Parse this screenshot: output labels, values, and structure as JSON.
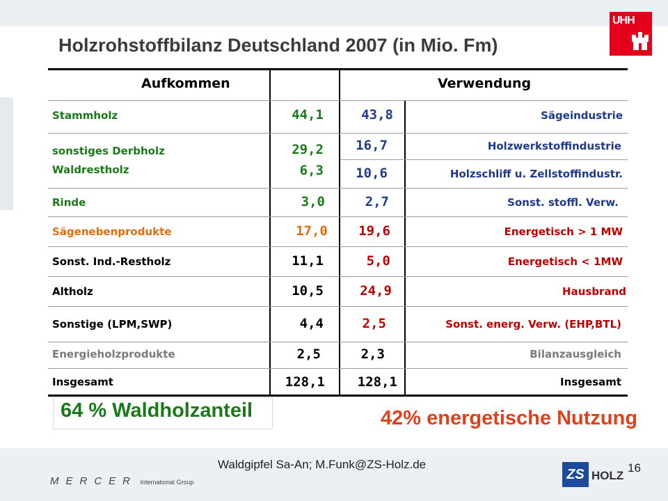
{
  "title": "Holzrohstoffbilanz Deutschland 2007 (in Mio. Fm)",
  "logo": {
    "text": "UHH"
  },
  "table": {
    "header": {
      "left": "Aufkommen",
      "right": "Verwendung"
    },
    "rows": [
      {
        "src": "Stammholz",
        "src_val": "44,1",
        "use_val": "43,8",
        "use": "Sägeindustrie"
      },
      {
        "src": "sonstiges Derbholz",
        "src_val": "29,2",
        "use_val": "16,7",
        "use": "Holzwerkstoffindustrie"
      },
      {
        "src": "Waldrestholz",
        "src_val": "6,3",
        "use_val": "10,6",
        "use": "Holzschliff u. Zellstoffindustr."
      },
      {
        "src": "Rinde",
        "src_val": "3,0",
        "use_val": "2,7",
        "use": "Sonst. stoffl. Verw."
      },
      {
        "src": "Sägenebenprodukte",
        "src_val": "17,0",
        "use_val": "19,6",
        "use": "Energetisch > 1 MW"
      },
      {
        "src": "Sonst. Ind.-Restholz",
        "src_val": "11,1",
        "use_val": "5,0",
        "use": "Energetisch < 1MW"
      },
      {
        "src": "Altholz",
        "src_val": "10,5",
        "use_val": "24,9",
        "use": "Hausbrand"
      },
      {
        "src": "Sonstige (LPM,SWP)",
        "src_val": "4,4",
        "use_val": "2,5",
        "use": "Sonst. energ. Verw. (EHP,BTL)"
      },
      {
        "src": "Energieholzprodukte",
        "src_val": "2,5",
        "use_val": "2,3",
        "use": "Bilanzausgleich"
      },
      {
        "src": "Insgesamt",
        "src_val": "128,1",
        "use_val": "128,1",
        "use": "Insgesamt"
      }
    ]
  },
  "callouts": {
    "left": "64 % Waldholzanteil",
    "right": "42% energetische Nutzung"
  },
  "footer": {
    "text": "Waldgipfel Sa-An; M.Funk@ZS-Holz.de",
    "page": "16"
  },
  "logos": {
    "mercer": "MERCER",
    "mercer_sub": "International Group",
    "zs": "ZS",
    "holz": "HOLZ"
  },
  "colors": {
    "green": "#1a7a1a",
    "blue": "#1f3a8a",
    "orange": "#e36c09",
    "red": "#c00000",
    "accent": "#e0401a"
  }
}
